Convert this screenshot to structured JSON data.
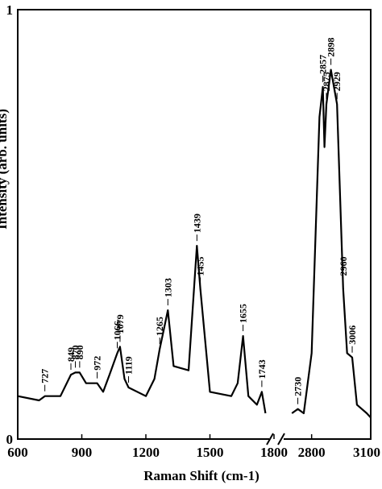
{
  "chart_data": {
    "type": "line",
    "xlabel": "Raman Shift (cm-1)",
    "ylabel": "Intensity (arb. units)",
    "ylim": [
      0,
      1
    ],
    "y_ticks": [
      "0",
      "1"
    ],
    "x_ticks": [
      "600",
      "900",
      "1200",
      "1500",
      "1800",
      "2800",
      "3100"
    ],
    "axis_break": "between 1800 and 2800",
    "grid": false,
    "series": [
      {
        "points": [
          [
            600,
            0.1
          ],
          [
            700,
            0.09
          ],
          [
            727,
            0.1
          ],
          [
            800,
            0.1
          ],
          [
            849,
            0.15
          ],
          [
            870,
            0.155
          ],
          [
            890,
            0.155
          ],
          [
            920,
            0.13
          ],
          [
            972,
            0.13
          ],
          [
            1000,
            0.11
          ],
          [
            1030,
            0.15
          ],
          [
            1066,
            0.2
          ],
          [
            1079,
            0.215
          ],
          [
            1100,
            0.14
          ],
          [
            1119,
            0.12
          ],
          [
            1200,
            0.1
          ],
          [
            1240,
            0.14
          ],
          [
            1265,
            0.21
          ],
          [
            1303,
            0.3
          ],
          [
            1330,
            0.17
          ],
          [
            1400,
            0.16
          ],
          [
            1439,
            0.45
          ],
          [
            1455,
            0.35
          ],
          [
            1500,
            0.11
          ],
          [
            1600,
            0.1
          ],
          [
            1630,
            0.13
          ],
          [
            1655,
            0.24
          ],
          [
            1680,
            0.1
          ],
          [
            1720,
            0.08
          ],
          [
            1743,
            0.11
          ],
          [
            1760,
            0.06
          ],
          [
            2700,
            0.06
          ],
          [
            2730,
            0.07
          ],
          [
            2760,
            0.06
          ],
          [
            2800,
            0.2
          ],
          [
            2840,
            0.75
          ],
          [
            2857,
            0.82
          ],
          [
            2865,
            0.68
          ],
          [
            2875,
            0.78
          ],
          [
            2898,
            0.86
          ],
          [
            2929,
            0.78
          ],
          [
            2960,
            0.35
          ],
          [
            2980,
            0.2
          ],
          [
            3006,
            0.19
          ],
          [
            3030,
            0.08
          ],
          [
            3080,
            0.06
          ],
          [
            3100,
            0.05
          ]
        ]
      }
    ],
    "peak_labels": [
      {
        "x": 727,
        "text": "727"
      },
      {
        "x": 849,
        "text": "849"
      },
      {
        "x": 870,
        "text": "870"
      },
      {
        "x": 890,
        "text": "890"
      },
      {
        "x": 972,
        "text": "972"
      },
      {
        "x": 1066,
        "text": "1066"
      },
      {
        "x": 1079,
        "text": "1079"
      },
      {
        "x": 1119,
        "text": "1119"
      },
      {
        "x": 1265,
        "text": "1265"
      },
      {
        "x": 1303,
        "text": "1303"
      },
      {
        "x": 1439,
        "text": "1439"
      },
      {
        "x": 1455,
        "text": "1455"
      },
      {
        "x": 1655,
        "text": "1655"
      },
      {
        "x": 1743,
        "text": "1743"
      },
      {
        "x": 2730,
        "text": "2730"
      },
      {
        "x": 2857,
        "text": "2857"
      },
      {
        "x": 2875,
        "text": "2875"
      },
      {
        "x": 2898,
        "text": "2898"
      },
      {
        "x": 2929,
        "text": "2929"
      },
      {
        "x": 2960,
        "text": "2960"
      },
      {
        "x": 3006,
        "text": "3006"
      }
    ]
  }
}
